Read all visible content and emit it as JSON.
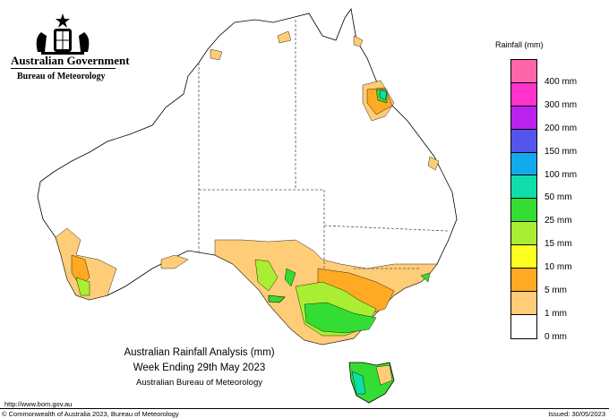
{
  "header": {
    "government": "Australian Government",
    "bureau": "Bureau of Meteorology"
  },
  "legend": {
    "title": "Rainfall (mm)",
    "items": [
      {
        "label": "",
        "color": "#ff66aa"
      },
      {
        "label": "400 mm",
        "color": "#ff33cc"
      },
      {
        "label": "300 mm",
        "color": "#bb22ee"
      },
      {
        "label": "200 mm",
        "color": "#5555ee"
      },
      {
        "label": "150 mm",
        "color": "#11aaee"
      },
      {
        "label": "100 mm",
        "color": "#11ddaa"
      },
      {
        "label": "50 mm",
        "color": "#33dd33"
      },
      {
        "label": "25 mm",
        "color": "#aaee33"
      },
      {
        "label": "15 mm",
        "color": "#ffff22"
      },
      {
        "label": "10 mm",
        "color": "#ffaa22"
      },
      {
        "label": "5 mm",
        "color": "#ffcc77"
      },
      {
        "label": "1 mm",
        "color": "#ffffff"
      },
      {
        "label": "0 mm",
        "color": null
      }
    ]
  },
  "caption": {
    "title": "Australian Rainfall Analysis (mm)",
    "subtitle": "Week Ending 29th May 2023",
    "source": "Australian Bureau of Meteorology"
  },
  "footer": {
    "url": "http://www.bom.gov.au",
    "copyright": "© Commonwealth of Australia 2023, Bureau of Meteorology",
    "issued": "Issued: 30/05/2023"
  }
}
